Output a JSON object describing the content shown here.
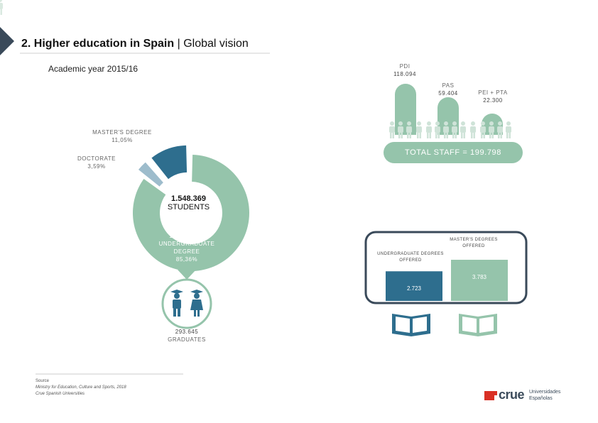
{
  "header": {
    "title_bold": "2. Higher education in Spain",
    "title_sep": " | ",
    "title_rest": "Global vision",
    "subtitle": "Academic year 2015/16"
  },
  "staff": {
    "pdi_label": "PDI",
    "pdi_value": "118.094",
    "pas_label": "PAS",
    "pas_value": "59.404",
    "pei_label": "PEI + PTA",
    "pei_value": "22.300",
    "total": "TOTAL STAFF = 199.798"
  },
  "students": {
    "total_value": "1.548.369",
    "total_label": "STUDENTS",
    "masters_label": "MASTER'S DEGREE",
    "masters_pct": "11,05%",
    "doctorate_label": "DOCTORATE",
    "doctorate_pct": "3,59%",
    "undergrad_label_1": "1-2 CICLE +",
    "undergrad_label_2": "UNDERGRADUATE",
    "undergrad_label_3": "DEGREE",
    "undergrad_pct": "85,36%",
    "graduates_value": "293.645",
    "graduates_label": "GRADUATES"
  },
  "degrees": {
    "undergrad_label_1": "UNDERGRADUATE DEGREES",
    "undergrad_label_2": "OFFERED",
    "undergrad_value": "2.723",
    "masters_label_1": "MASTER'S DEGREES",
    "masters_label_2": "OFFERED",
    "masters_value": "3.783"
  },
  "source": {
    "heading": "Source",
    "line1": "Ministry for Education, Culture and Sports, 2018",
    "line2": "Crue Spanish Universities"
  },
  "logo": {
    "name": "crue",
    "tagline_1": "Universidades",
    "tagline_2": "Españolas"
  },
  "chart_data": {
    "type": "pie",
    "title": "STUDENTS",
    "categories": [
      "1-2 CICLE + UNDERGRADUATE DEGREE",
      "MASTER'S DEGREE",
      "DOCTORATE"
    ],
    "values": [
      85.36,
      11.05,
      3.59
    ],
    "colors": [
      "#95c4ab",
      "#2e6e8e",
      "#9dbccc"
    ]
  },
  "colors": {
    "accent_green": "#95c4ab",
    "accent_blue": "#2e6e8e",
    "light_blue": "#9dbccc",
    "dark_navy": "#3a4a5a"
  }
}
